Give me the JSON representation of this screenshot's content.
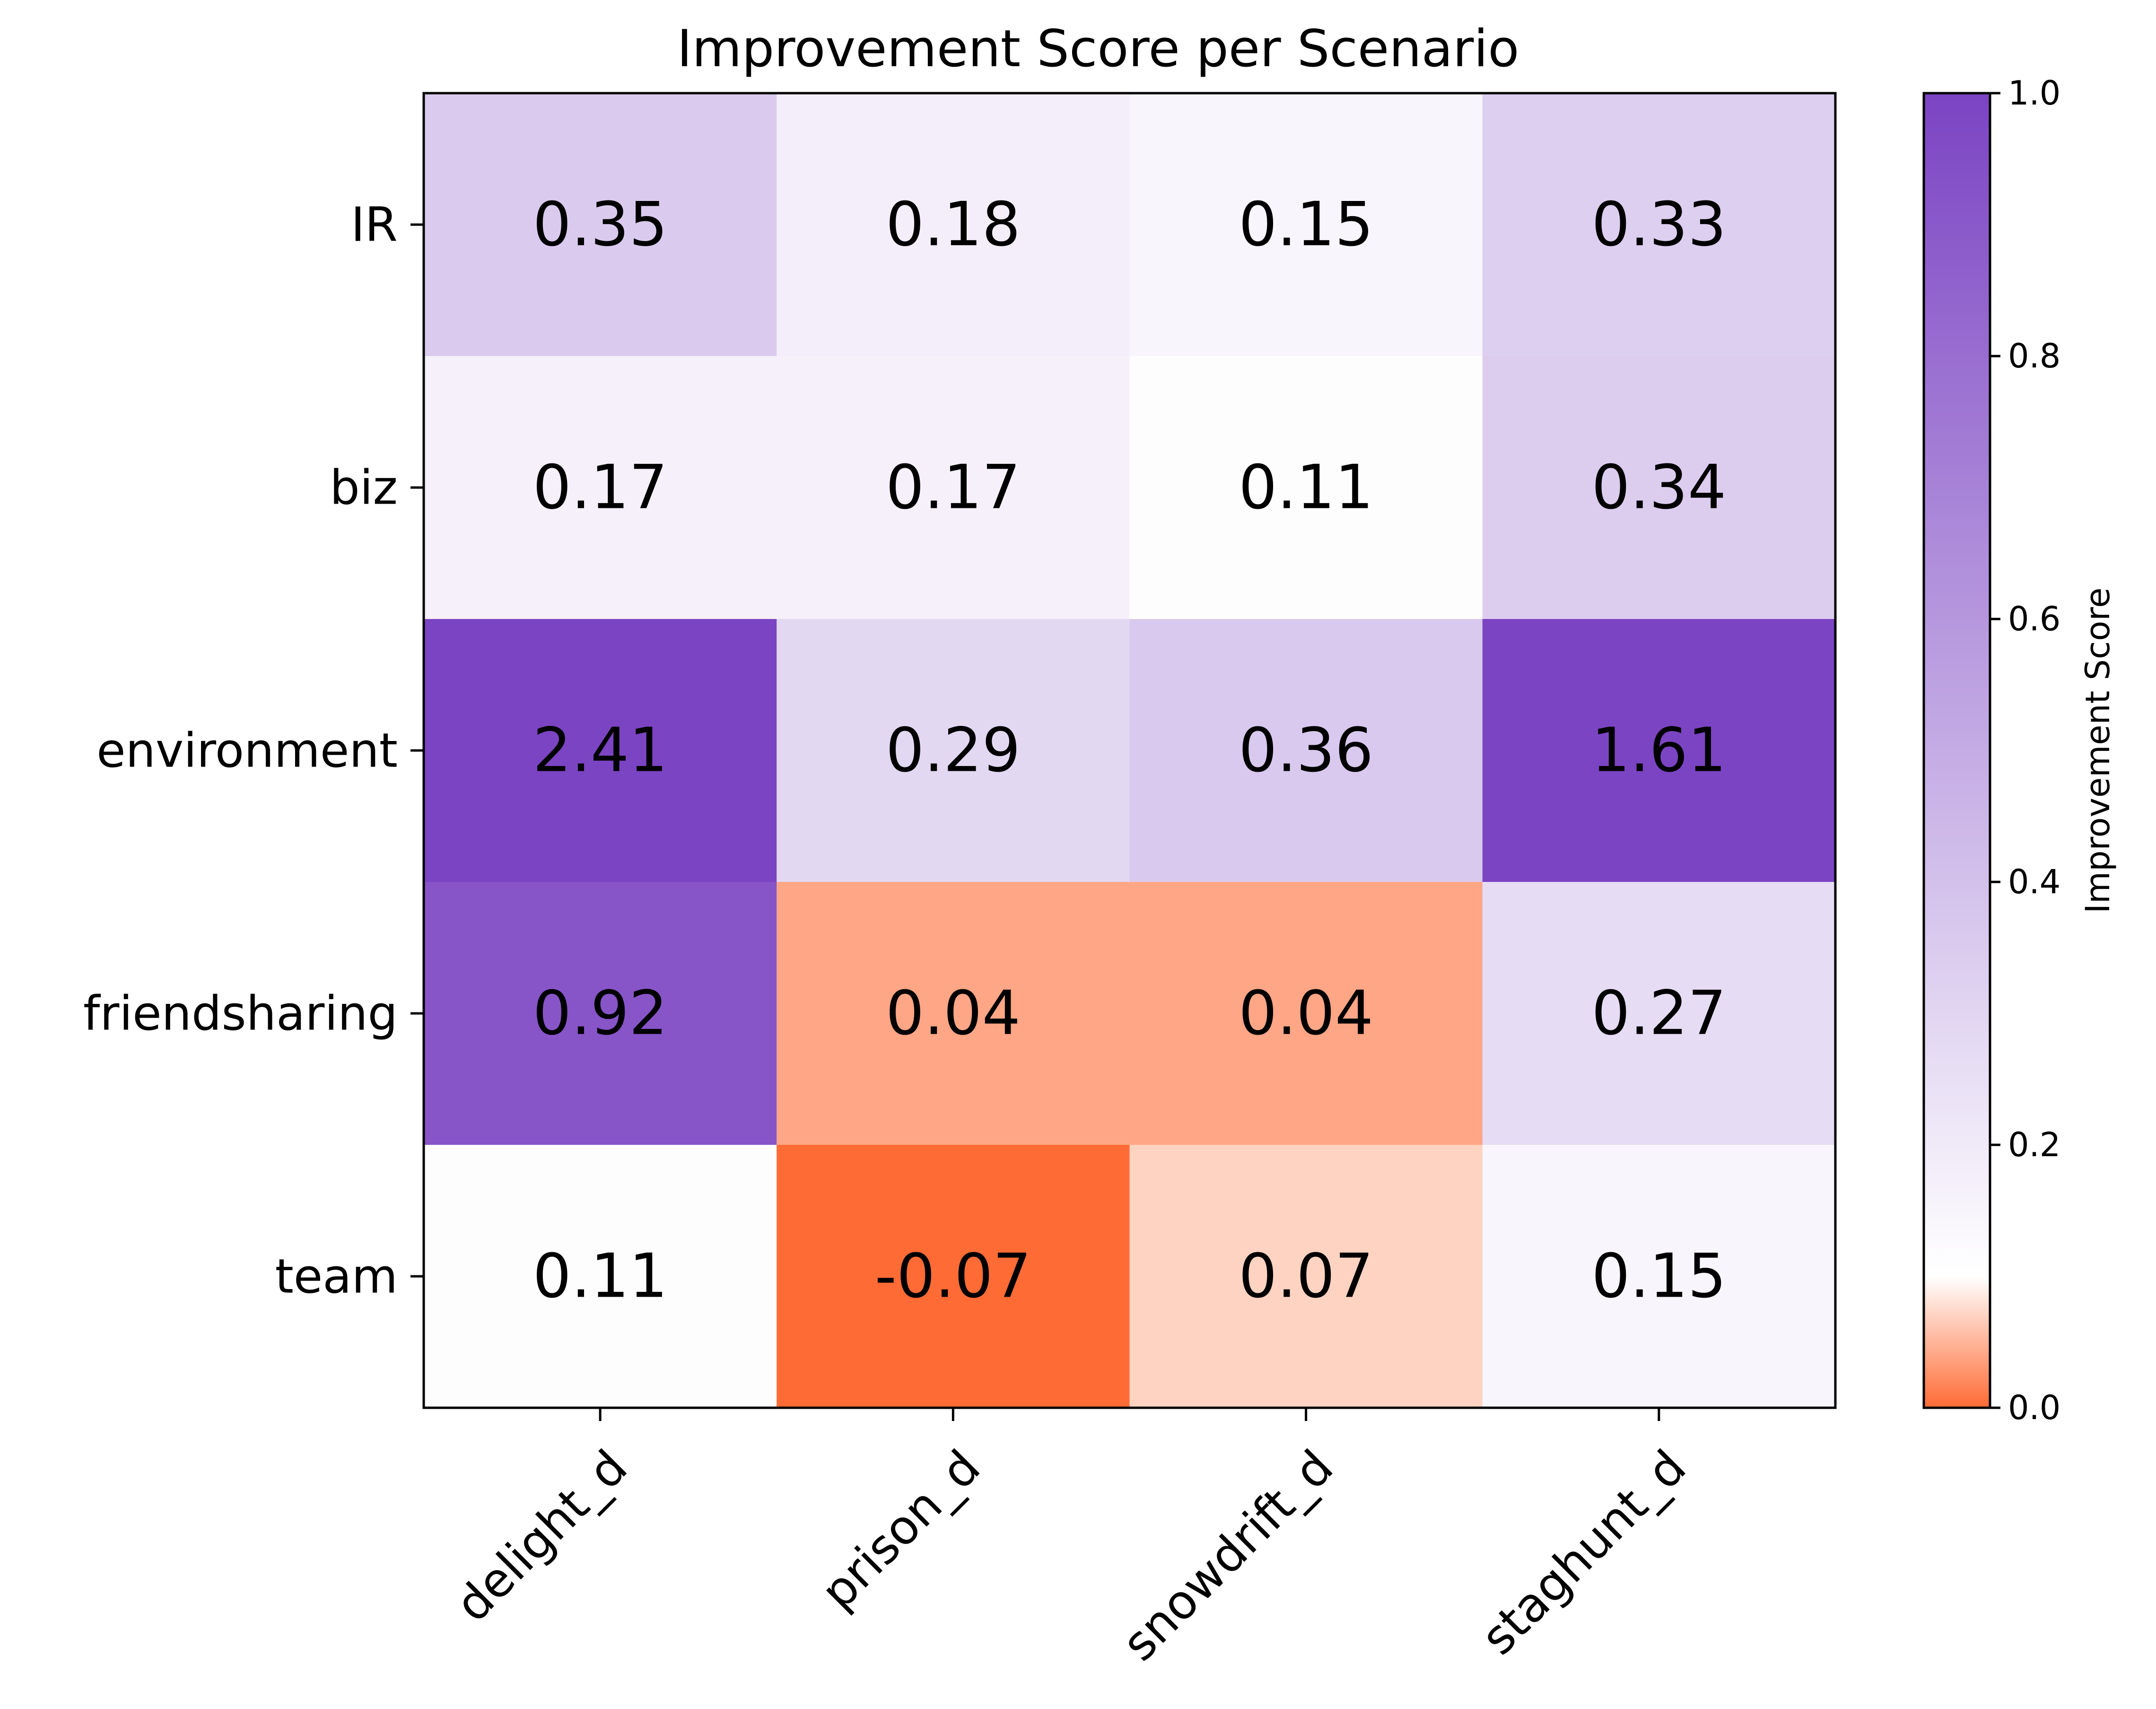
{
  "chart_data": {
    "type": "heatmap",
    "title": "Improvement Score per Scenario",
    "rows": [
      "IR",
      "biz",
      "environment",
      "friendsharing",
      "team"
    ],
    "columns": [
      "delight_d",
      "prison_d",
      "snowdrift_d",
      "staghunt_d"
    ],
    "values": [
      [
        0.35,
        0.18,
        0.15,
        0.33
      ],
      [
        0.17,
        0.17,
        0.11,
        0.34
      ],
      [
        2.41,
        0.29,
        0.36,
        1.61
      ],
      [
        0.92,
        0.04,
        0.04,
        0.27
      ],
      [
        0.11,
        -0.07,
        0.07,
        0.15
      ]
    ],
    "cell_labels": [
      [
        "0.35",
        "0.18",
        "0.15",
        "0.33"
      ],
      [
        "0.17",
        "0.17",
        "0.11",
        "0.34"
      ],
      [
        "2.41",
        "0.29",
        "0.36",
        "1.61"
      ],
      [
        "0.92",
        "0.04",
        "0.04",
        "0.27"
      ],
      [
        "0.11",
        "-0.07",
        "0.07",
        "0.15"
      ]
    ],
    "colorbar": {
      "label": "Improvement Score",
      "range": [
        0,
        1
      ],
      "ticks": [
        "0.0",
        "0.2",
        "0.4",
        "0.6",
        "0.8",
        "1.0"
      ],
      "tick_values": [
        0,
        0.2,
        0.4,
        0.6,
        0.8,
        1.0
      ],
      "colormap": [
        {
          "value": 0.0,
          "color": "#ff6b35"
        },
        {
          "value": 0.1,
          "color": "#ffffff"
        },
        {
          "value": 1.0,
          "color": "#7b44c3"
        }
      ]
    }
  }
}
